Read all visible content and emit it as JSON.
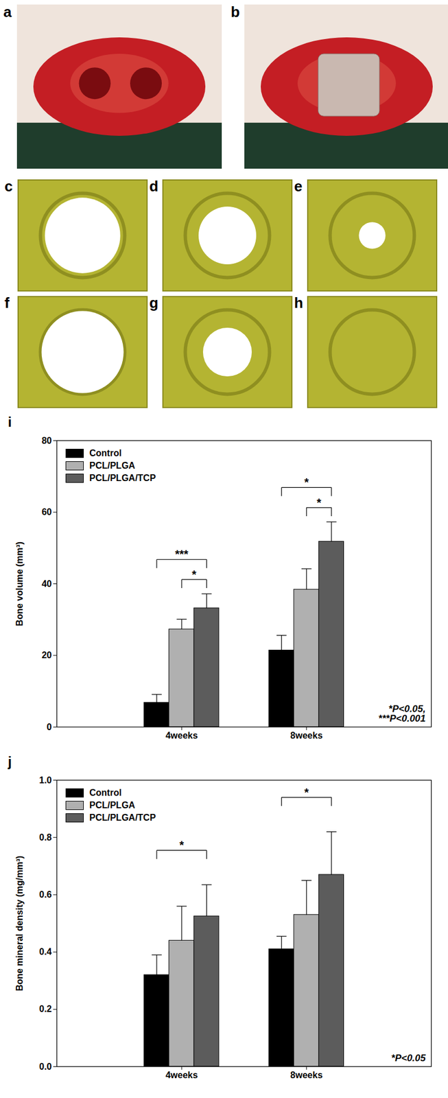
{
  "panels": {
    "photos": [
      "a",
      "b"
    ],
    "renderings": [
      "c",
      "d",
      "e",
      "f",
      "g",
      "h"
    ]
  },
  "chart_data": [
    {
      "type": "bar",
      "title": "i",
      "categories": [
        "4weeks",
        "8weeks"
      ],
      "series": [
        {
          "name": "Control",
          "color": "#000000",
          "values": [
            6.8,
            21.4
          ],
          "errors": [
            2.3,
            4.2
          ]
        },
        {
          "name": "PCL/PLGA",
          "color": "#b0b0b0",
          "values": [
            27.3,
            38.4
          ],
          "errors": [
            2.8,
            5.8
          ]
        },
        {
          "name": "PCL/PLGA/TCP",
          "color": "#5c5c5c",
          "values": [
            33.2,
            51.8
          ],
          "errors": [
            4.0,
            5.5
          ]
        }
      ],
      "ylabel": "Bone volume (mm³)",
      "ylim": [
        0,
        80
      ],
      "yticks": [
        0,
        20,
        40,
        60,
        80
      ],
      "grid": false,
      "legend": "upper left",
      "annotations": [
        "*P<0.05,",
        "***P<0.001"
      ],
      "significance": [
        {
          "category": "4weeks",
          "from": "Control",
          "to": "PCL/PLGA/TCP",
          "label": "***"
        },
        {
          "category": "4weeks",
          "from": "PCL/PLGA",
          "to": "PCL/PLGA/TCP",
          "label": "*"
        },
        {
          "category": "8weeks",
          "from": "Control",
          "to": "PCL/PLGA/TCP",
          "label": "*"
        },
        {
          "category": "8weeks",
          "from": "PCL/PLGA",
          "to": "PCL/PLGA/TCP",
          "label": "*"
        }
      ]
    },
    {
      "type": "bar",
      "title": "j",
      "categories": [
        "4weeks",
        "8weeks"
      ],
      "series": [
        {
          "name": "Control",
          "color": "#000000",
          "values": [
            0.32,
            0.41
          ],
          "errors": [
            0.07,
            0.045
          ]
        },
        {
          "name": "PCL/PLGA",
          "color": "#b0b0b0",
          "values": [
            0.44,
            0.53
          ],
          "errors": [
            0.12,
            0.12
          ]
        },
        {
          "name": "PCL/PLGA/TCP",
          "color": "#5c5c5c",
          "values": [
            0.525,
            0.67
          ],
          "errors": [
            0.11,
            0.15
          ]
        }
      ],
      "ylabel": "Bone mineral density (mg/mm³)",
      "ylim": [
        0,
        1
      ],
      "yticks": [
        {
          "value": 0,
          "label": "0.0"
        },
        0.2,
        0.4,
        0.6,
        0.8,
        {
          "value": 1,
          "label": "1.0"
        }
      ],
      "grid": false,
      "legend": "upper left",
      "annotations": [
        "*P<0.05"
      ],
      "significance": [
        {
          "category": "4weeks",
          "from": "Control",
          "to": "PCL/PLGA/TCP",
          "label": "*"
        },
        {
          "category": "8weeks",
          "from": "Control",
          "to": "PCL/PLGA/TCP",
          "label": "*"
        }
      ]
    }
  ]
}
